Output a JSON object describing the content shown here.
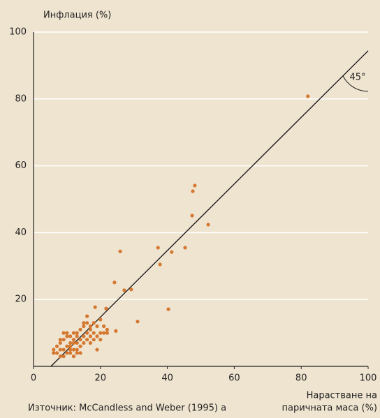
{
  "chart_data": {
    "type": "scatter",
    "ylabel": "Инфлация (%)",
    "xlabel": [
      "Нарастване на",
      "паричната маса (%)"
    ],
    "source": "Източник: McCandless and Weber (1995) a",
    "xlim": [
      0,
      100
    ],
    "ylim": [
      0,
      100
    ],
    "xticks": [
      0,
      20,
      40,
      60,
      80,
      100
    ],
    "yticks": [
      20,
      40,
      60,
      80,
      100
    ],
    "grid": true,
    "color": "#d4772f",
    "x": [
      82.0,
      48.2,
      47.6,
      52.2,
      47.4,
      37.2,
      45.3,
      41.3,
      37.8,
      25.9,
      24.2,
      27.1,
      29.2,
      31.1,
      40.3,
      24.6,
      21.7,
      18.4,
      15,
      16,
      17,
      18,
      19,
      20,
      21,
      22,
      20,
      18,
      17,
      16,
      15,
      14,
      13,
      12,
      11,
      10,
      9,
      8,
      7,
      8,
      9,
      10,
      11,
      12,
      13,
      12,
      11,
      10,
      9,
      8,
      7,
      6,
      6,
      13,
      14,
      15,
      16,
      17,
      18,
      19,
      20,
      21,
      14,
      12,
      11,
      13,
      14,
      16,
      15,
      10,
      9,
      17,
      19,
      22,
      8,
      12,
      13,
      11
    ],
    "values": [
      80.8,
      54.1,
      52.4,
      42.4,
      45.1,
      35.5,
      35.5,
      34.2,
      30.5,
      34.4,
      25.1,
      22.8,
      23.0,
      13.4,
      17.1,
      10.6,
      17.3,
      17.7,
      12,
      13,
      12,
      13,
      12,
      14,
      12,
      11,
      10,
      10,
      9,
      10,
      9,
      8,
      9,
      8,
      9,
      10,
      8,
      7,
      6,
      5,
      5,
      6,
      6,
      7,
      7,
      5,
      4,
      4,
      3,
      3,
      4,
      4,
      5,
      5,
      6,
      7,
      8,
      7,
      8,
      9,
      8,
      10,
      4,
      3,
      7,
      10,
      11,
      15,
      13,
      9,
      10,
      11,
      5,
      10,
      8,
      10,
      4,
      5
    ],
    "reference_line": {
      "x": [
        5.2,
        100
      ],
      "values": [
        0,
        94.4
      ],
      "label": "45°"
    }
  }
}
